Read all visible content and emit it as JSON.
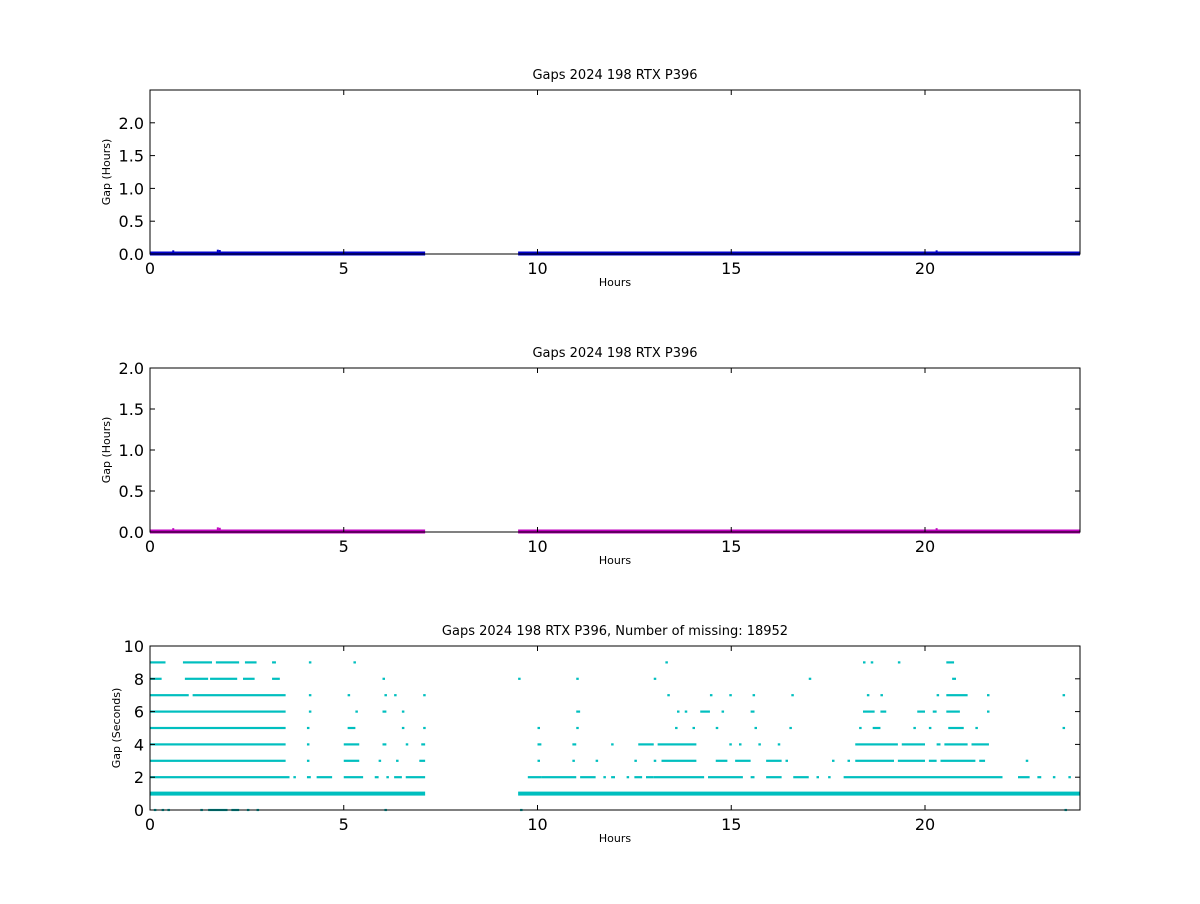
{
  "chart_data": [
    {
      "type": "scatter",
      "title": "Gaps 2024 198 RTX  P396",
      "xlabel": "Hours",
      "ylabel": "Gap (Hours)",
      "xlim": [
        0,
        24
      ],
      "ylim": [
        0,
        2.5
      ],
      "xticks": [
        0,
        5,
        10,
        15,
        20
      ],
      "yticks": [
        0.0,
        0.5,
        1.0,
        1.5,
        2.0
      ],
      "ytick_labels": [
        "0.0",
        "0.5",
        "1.0",
        "1.5",
        "2.0"
      ],
      "grid": false,
      "color": "#0000cc",
      "series": [
        {
          "segments": [
            {
              "x_start": 0.0,
              "x_end": 7.1,
              "y": 0.0
            },
            {
              "x_start": 9.5,
              "x_end": 24.0,
              "y": 0.0
            }
          ],
          "spikes": [
            {
              "x": 0.6,
              "y": 0.01
            },
            {
              "x": 1.75,
              "y": 0.02
            },
            {
              "x": 1.8,
              "y": 0.015
            },
            {
              "x": 20.3,
              "y": 0.01
            }
          ]
        }
      ]
    },
    {
      "type": "scatter",
      "title": "Gaps 2024 198 RTX  P396",
      "xlabel": "Hours",
      "ylabel": "Gap (Hours)",
      "xlim": [
        0,
        24
      ],
      "ylim": [
        0,
        2.0
      ],
      "xticks": [
        0,
        5,
        10,
        15,
        20
      ],
      "yticks": [
        0.0,
        0.5,
        1.0,
        1.5,
        2.0
      ],
      "ytick_labels": [
        "0.0",
        "0.5",
        "1.0",
        "1.5",
        "2.0"
      ],
      "grid": false,
      "color": "#bf00bf",
      "series": [
        {
          "segments": [
            {
              "x_start": 0.0,
              "x_end": 7.1,
              "y": 0.0
            },
            {
              "x_start": 9.5,
              "x_end": 24.0,
              "y": 0.0
            }
          ],
          "spikes": [
            {
              "x": 0.6,
              "y": 0.01
            },
            {
              "x": 1.75,
              "y": 0.02
            },
            {
              "x": 1.8,
              "y": 0.015
            },
            {
              "x": 20.3,
              "y": 0.01
            }
          ]
        }
      ]
    },
    {
      "type": "scatter",
      "title": "Gaps 2024 198 RTX  P396, Number of missing: 18952",
      "xlabel": "Hours",
      "ylabel": "Gap (Seconds)",
      "xlim": [
        0,
        24
      ],
      "ylim": [
        0,
        10
      ],
      "xticks": [
        0,
        5,
        10,
        15,
        20
      ],
      "yticks": [
        0,
        2,
        4,
        6,
        8,
        10
      ],
      "ytick_labels": [
        "0",
        "2",
        "4",
        "6",
        "8",
        "10"
      ],
      "grid": false,
      "color": "#00bfbf",
      "series": [
        {
          "rows": [
            {
              "y": 9,
              "ranges": [
                [
                  0.0,
                  0.4
                ],
                [
                  0.85,
                  1.6
                ],
                [
                  1.7,
                  2.0
                ],
                [
                  2.0,
                  2.3
                ],
                [
                  2.45,
                  2.75
                ],
                [
                  3.15,
                  3.25
                ],
                [
                  4.1,
                  4.15
                ],
                [
                  5.25,
                  5.3
                ],
                [
                  13.3,
                  13.35
                ],
                [
                  18.4,
                  18.45
                ],
                [
                  18.6,
                  18.65
                ],
                [
                  19.3,
                  19.35
                ],
                [
                  20.55,
                  20.75
                ]
              ]
            },
            {
              "y": 8,
              "ranges": [
                [
                  0.0,
                  0.3
                ],
                [
                  0.9,
                  1.5
                ],
                [
                  1.55,
                  2.25
                ],
                [
                  2.4,
                  2.7
                ],
                [
                  3.15,
                  3.35
                ],
                [
                  6.0,
                  6.05
                ],
                [
                  9.5,
                  9.55
                ],
                [
                  11.0,
                  11.05
                ],
                [
                  13.0,
                  13.05
                ],
                [
                  17.0,
                  17.05
                ],
                [
                  20.7,
                  20.8
                ]
              ]
            },
            {
              "y": 7,
              "ranges": [
                [
                  0.0,
                  1.0
                ],
                [
                  1.1,
                  3.5
                ],
                [
                  4.1,
                  4.15
                ],
                [
                  5.1,
                  5.15
                ],
                [
                  6.05,
                  6.1
                ],
                [
                  6.3,
                  6.35
                ],
                [
                  7.05,
                  7.1
                ],
                [
                  13.35,
                  13.4
                ],
                [
                  14.45,
                  14.5
                ],
                [
                  14.95,
                  15.0
                ],
                [
                  15.55,
                  15.6
                ],
                [
                  16.55,
                  16.6
                ],
                [
                  18.5,
                  18.55
                ],
                [
                  18.85,
                  18.9
                ],
                [
                  20.3,
                  20.35
                ],
                [
                  20.55,
                  21.1
                ],
                [
                  21.6,
                  21.65
                ],
                [
                  23.55,
                  23.6
                ]
              ]
            },
            {
              "y": 6,
              "ranges": [
                [
                  0.0,
                  3.5
                ],
                [
                  4.1,
                  4.15
                ],
                [
                  5.3,
                  5.35
                ],
                [
                  6.0,
                  6.1
                ],
                [
                  6.5,
                  6.55
                ],
                [
                  11.0,
                  11.1
                ],
                [
                  13.6,
                  13.65
                ],
                [
                  13.8,
                  13.85
                ],
                [
                  14.2,
                  14.45
                ],
                [
                  14.75,
                  14.8
                ],
                [
                  15.5,
                  15.6
                ],
                [
                  18.4,
                  18.7
                ],
                [
                  18.85,
                  19.0
                ],
                [
                  19.8,
                  20.0
                ],
                [
                  20.2,
                  20.3
                ],
                [
                  20.55,
                  20.9
                ],
                [
                  21.6,
                  21.65
                ]
              ]
            },
            {
              "y": 5,
              "ranges": [
                [
                  0.0,
                  3.5
                ],
                [
                  4.05,
                  4.1
                ],
                [
                  5.1,
                  5.3
                ],
                [
                  6.5,
                  6.55
                ],
                [
                  7.05,
                  7.1
                ],
                [
                  10.0,
                  10.05
                ],
                [
                  11.0,
                  11.05
                ],
                [
                  13.55,
                  13.6
                ],
                [
                  14.0,
                  14.05
                ],
                [
                  14.6,
                  14.65
                ],
                [
                  15.6,
                  15.65
                ],
                [
                  16.5,
                  16.55
                ],
                [
                  18.3,
                  18.35
                ],
                [
                  18.65,
                  18.85
                ],
                [
                  19.7,
                  19.75
                ],
                [
                  20.1,
                  20.15
                ],
                [
                  20.6,
                  21.0
                ],
                [
                  21.3,
                  21.35
                ],
                [
                  23.55,
                  23.6
                ]
              ]
            },
            {
              "y": 4,
              "ranges": [
                [
                  0.0,
                  3.5
                ],
                [
                  4.05,
                  4.1
                ],
                [
                  5.0,
                  5.4
                ],
                [
                  6.0,
                  6.1
                ],
                [
                  6.6,
                  6.65
                ],
                [
                  7.0,
                  7.1
                ],
                [
                  10.0,
                  10.1
                ],
                [
                  10.9,
                  11.0
                ],
                [
                  11.9,
                  11.95
                ],
                [
                  12.6,
                  13.0
                ],
                [
                  13.1,
                  14.1
                ],
                [
                  14.95,
                  15.0
                ],
                [
                  15.2,
                  15.25
                ],
                [
                  15.7,
                  15.75
                ],
                [
                  16.2,
                  16.25
                ],
                [
                  18.2,
                  19.3
                ],
                [
                  19.4,
                  20.0
                ],
                [
                  20.3,
                  20.4
                ],
                [
                  20.5,
                  21.1
                ],
                [
                  21.2,
                  21.65
                ]
              ]
            },
            {
              "y": 3,
              "ranges": [
                [
                  0.0,
                  3.5
                ],
                [
                  4.05,
                  4.1
                ],
                [
                  5.0,
                  5.4
                ],
                [
                  5.9,
                  5.95
                ],
                [
                  6.35,
                  6.4
                ],
                [
                  6.95,
                  7.1
                ],
                [
                  10.0,
                  10.05
                ],
                [
                  10.9,
                  10.95
                ],
                [
                  11.5,
                  11.55
                ],
                [
                  12.5,
                  12.55
                ],
                [
                  13.0,
                  13.05
                ],
                [
                  13.2,
                  14.1
                ],
                [
                  14.6,
                  14.9
                ],
                [
                  15.1,
                  15.5
                ],
                [
                  15.9,
                  16.3
                ],
                [
                  16.4,
                  16.45
                ],
                [
                  17.6,
                  17.65
                ],
                [
                  18.0,
                  18.05
                ],
                [
                  18.2,
                  19.2
                ],
                [
                  19.3,
                  20.0
                ],
                [
                  20.1,
                  20.3
                ],
                [
                  20.4,
                  21.3
                ],
                [
                  21.4,
                  21.55
                ],
                [
                  22.6,
                  22.65
                ]
              ]
            },
            {
              "y": 2,
              "ranges": [
                [
                  0.0,
                  3.6
                ],
                [
                  3.7,
                  3.75
                ],
                [
                  4.05,
                  4.15
                ],
                [
                  4.3,
                  4.7
                ],
                [
                  5.0,
                  5.5
                ],
                [
                  5.8,
                  5.9
                ],
                [
                  6.1,
                  6.15
                ],
                [
                  6.3,
                  6.5
                ],
                [
                  6.6,
                  7.1
                ],
                [
                  9.75,
                  10.1
                ],
                [
                  10.1,
                  11.0
                ],
                [
                  11.1,
                  11.5
                ],
                [
                  11.7,
                  11.75
                ],
                [
                  11.9,
                  12.0
                ],
                [
                  12.3,
                  12.35
                ],
                [
                  12.5,
                  12.7
                ],
                [
                  12.8,
                  13.0
                ],
                [
                  13.0,
                  14.3
                ],
                [
                  14.4,
                  15.3
                ],
                [
                  15.5,
                  15.6
                ],
                [
                  15.9,
                  16.3
                ],
                [
                  16.6,
                  17.0
                ],
                [
                  17.2,
                  17.25
                ],
                [
                  17.5,
                  17.55
                ],
                [
                  17.9,
                  22.0
                ],
                [
                  22.4,
                  22.7
                ],
                [
                  22.9,
                  23.0
                ],
                [
                  23.3,
                  23.35
                ],
                [
                  23.7,
                  23.75
                ]
              ]
            },
            {
              "y": 1,
              "ranges": [
                [
                  0.0,
                  7.1
                ],
                [
                  9.5,
                  24.0
                ]
              ]
            },
            {
              "y": 0,
              "ranges": [
                [
                  0.1,
                  0.15
                ],
                [
                  0.3,
                  0.35
                ],
                [
                  0.45,
                  0.5
                ],
                [
                  1.3,
                  1.35
                ],
                [
                  1.5,
                  2.0
                ],
                [
                  2.1,
                  2.3
                ],
                [
                  2.5,
                  2.55
                ],
                [
                  2.75,
                  2.8
                ],
                [
                  6.05,
                  6.1
                ],
                [
                  9.55,
                  9.6
                ],
                [
                  23.6,
                  23.65
                ]
              ]
            }
          ]
        }
      ]
    }
  ]
}
